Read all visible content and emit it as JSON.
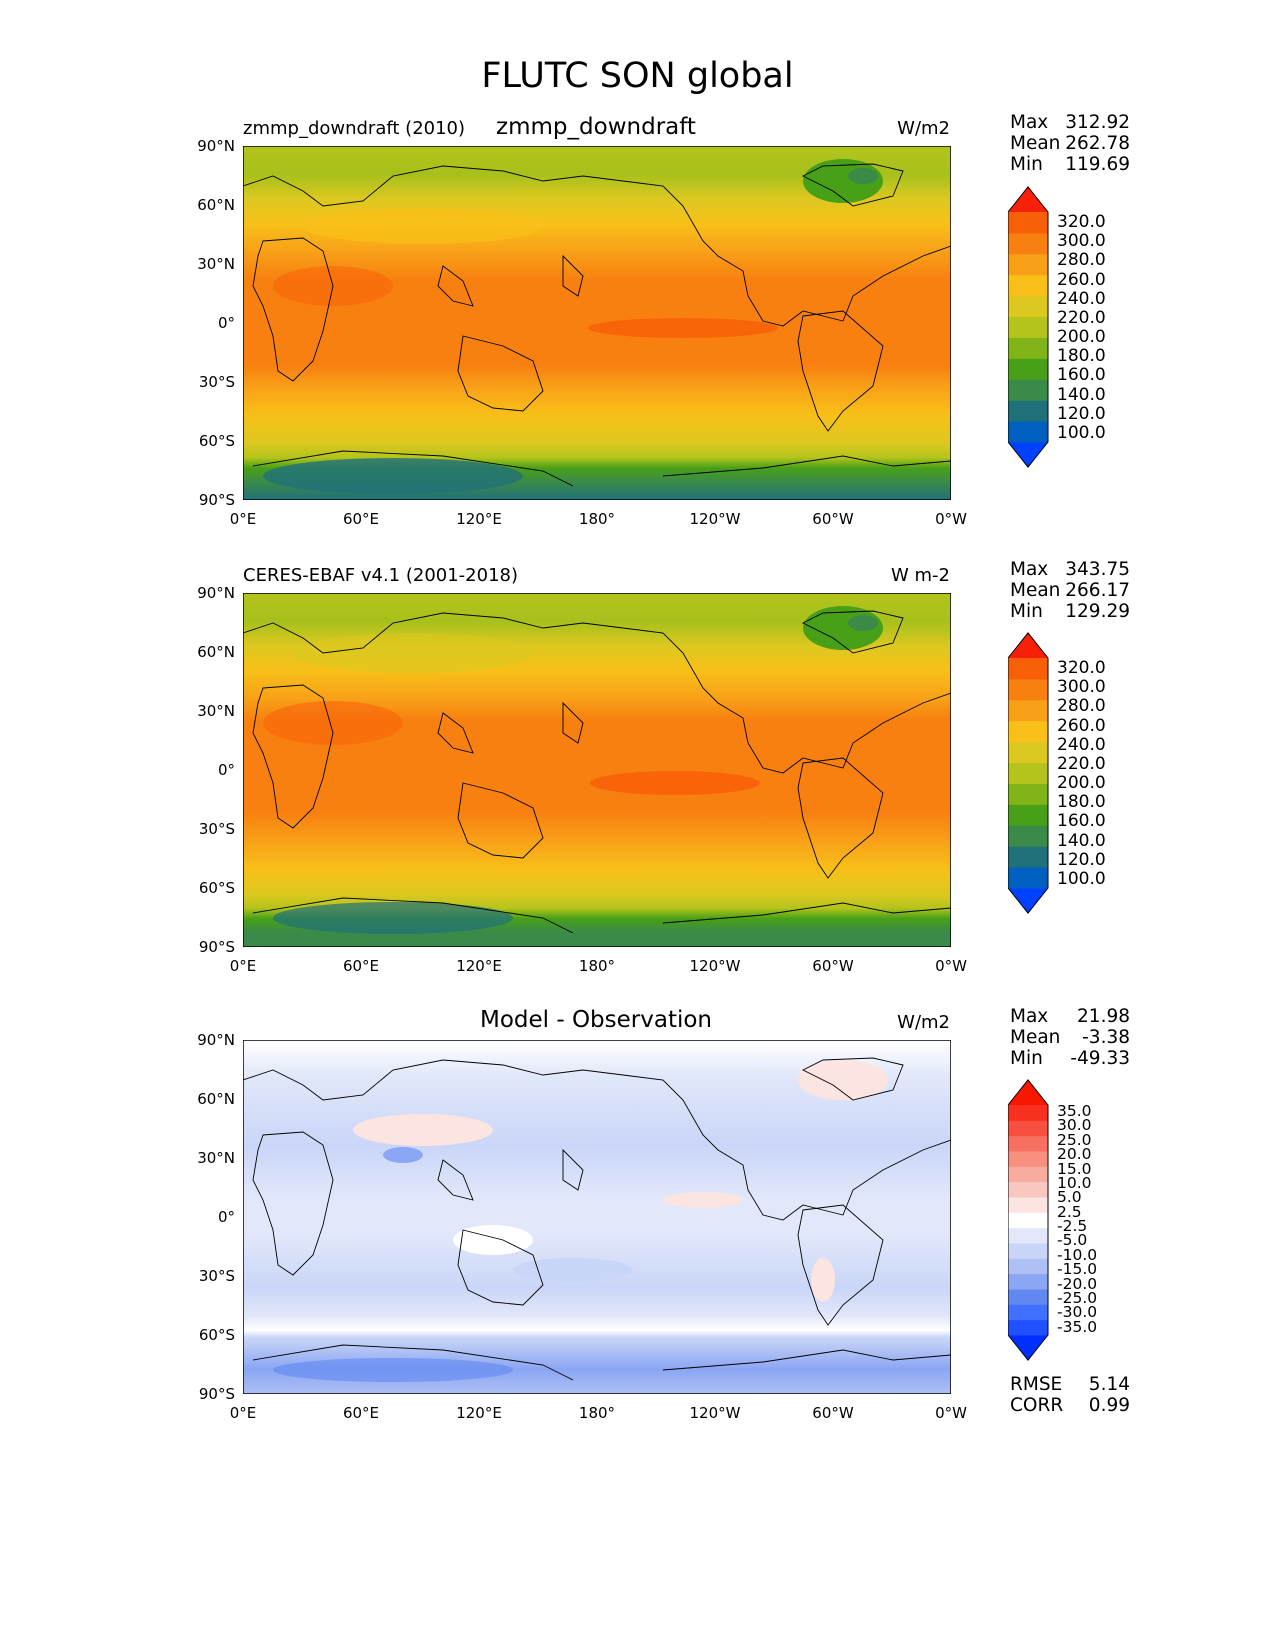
{
  "figure": {
    "title": "FLUTC SON global"
  },
  "axes": {
    "lat_labels": [
      "90°N",
      "60°N",
      "30°N",
      "0°",
      "30°S",
      "60°S",
      "90°S"
    ],
    "lon_labels": [
      "0°E",
      "60°E",
      "120°E",
      "180°",
      "120°W",
      "60°W",
      "0°W"
    ]
  },
  "panels": [
    {
      "left_title": "zmmp_downdraft (2010)",
      "center_title": "zmmp_downdraft",
      "units": "W/m2",
      "stats": {
        "max_label": "Max",
        "max": "312.92",
        "mean_label": "Mean",
        "mean": "262.78",
        "min_label": "Min",
        "min": "119.69"
      },
      "colorbar": [
        "320.0",
        "300.0",
        "280.0",
        "260.0",
        "240.0",
        "220.0",
        "200.0",
        "180.0",
        "160.0",
        "140.0",
        "120.0",
        "100.0"
      ]
    },
    {
      "left_title": "CERES-EBAF v4.1 (2001-2018)",
      "center_title": "",
      "units": "W m-2",
      "stats": {
        "max_label": "Max",
        "max": "343.75",
        "mean_label": "Mean",
        "mean": "266.17",
        "min_label": "Min",
        "min": "129.29"
      },
      "colorbar": [
        "320.0",
        "300.0",
        "280.0",
        "260.0",
        "240.0",
        "220.0",
        "200.0",
        "180.0",
        "160.0",
        "140.0",
        "120.0",
        "100.0"
      ]
    },
    {
      "left_title": "",
      "center_title": "Model - Observation",
      "units": "W/m2",
      "stats": {
        "max_label": "Max",
        "max": "21.98",
        "mean_label": "Mean",
        "mean": "-3.38",
        "min_label": "Min",
        "min": "-49.33"
      },
      "colorbar": [
        "35.0",
        "30.0",
        "25.0",
        "20.0",
        "15.0",
        "10.0",
        "5.0",
        "2.5",
        "-2.5",
        "-5.0",
        "-10.0",
        "-15.0",
        "-20.0",
        "-25.0",
        "-30.0",
        "-35.0"
      ],
      "extra": {
        "rmse_label": "RMSE",
        "rmse": "5.14",
        "corr_label": "CORR",
        "corr": "0.99"
      }
    }
  ],
  "colors": {
    "field_scale": [
      "#0040ff",
      "#0060c0",
      "#20707a",
      "#3a8a4a",
      "#48a018",
      "#80b418",
      "#b4c41c",
      "#dcc820",
      "#f8c018",
      "#f8a018",
      "#f88010",
      "#f86008",
      "#f82008"
    ],
    "diff_scale": [
      "#0030ff",
      "#2050ff",
      "#4070ff",
      "#6088f0",
      "#8aa6f4",
      "#aec0f4",
      "#cad6f8",
      "#e2e8fa",
      "#ffffff",
      "#fce4e0",
      "#f8c8c0",
      "#f8aca0",
      "#f89080",
      "#f87060",
      "#f85040",
      "#f83020",
      "#f81800"
    ]
  }
}
